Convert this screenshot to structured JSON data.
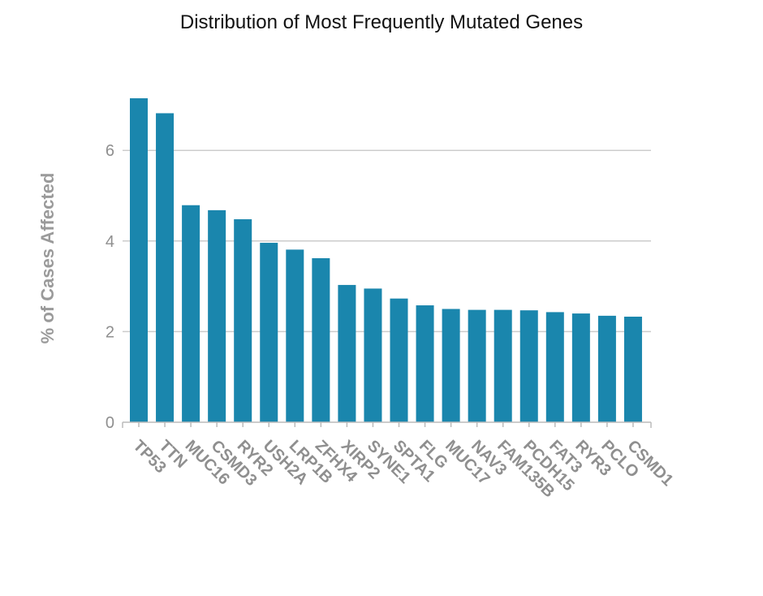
{
  "chart_data": {
    "type": "bar",
    "title": "Distribution of Most Frequently Mutated Genes",
    "xlabel": "",
    "ylabel": "% of Cases Affected",
    "categories": [
      "TP53",
      "TTN",
      "MUC16",
      "CSMD3",
      "RYR2",
      "USH2A",
      "LRP1B",
      "ZFHX4",
      "XIRP2",
      "SYNE1",
      "SPTA1",
      "FLG",
      "MUC17",
      "NAV3",
      "FAM135B",
      "PCDH15",
      "FAT3",
      "RYR3",
      "PCLO",
      "CSMD1"
    ],
    "values": [
      7.15,
      6.82,
      4.79,
      4.68,
      4.48,
      3.96,
      3.81,
      3.62,
      3.03,
      2.95,
      2.73,
      2.58,
      2.5,
      2.48,
      2.48,
      2.47,
      2.43,
      2.4,
      2.35,
      2.33
    ],
    "yticks": [
      0,
      2,
      4,
      6
    ],
    "ylim": [
      0,
      7.15
    ],
    "grid": true,
    "bar_color": "#1a86ad",
    "grid_color": "#cccccc",
    "axis_color": "#bbbbbb",
    "tick_label_color": "#8f8f8f"
  }
}
